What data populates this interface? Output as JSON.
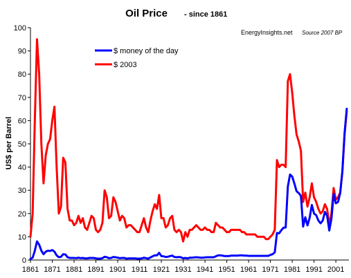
{
  "chart_data": {
    "type": "line",
    "title": "Oil Price",
    "subtitle": "- since 1861",
    "ylabel": "US$ per Barrel",
    "xlabel": "",
    "source_left": "EnergyInsights.net",
    "source_right": "Source 2007 BP",
    "ylim": [
      0,
      100
    ],
    "xlim": [
      1861,
      2007
    ],
    "yticks": [
      0,
      10,
      20,
      30,
      40,
      50,
      60,
      70,
      80,
      90,
      100
    ],
    "xticks": [
      1861,
      1871,
      1881,
      1891,
      1901,
      1911,
      1921,
      1931,
      1941,
      1951,
      1961,
      1971,
      1981,
      1991,
      2001
    ],
    "grid": false,
    "legend_position": "top-left",
    "series": [
      {
        "name": "$ money of the day",
        "color": "#0000ff",
        "points": [
          [
            1861,
            0.5
          ],
          [
            1862,
            1.0
          ],
          [
            1863,
            4.0
          ],
          [
            1864,
            8.0
          ],
          [
            1865,
            6.6
          ],
          [
            1866,
            4.0
          ],
          [
            1867,
            2.5
          ],
          [
            1868,
            3.6
          ],
          [
            1869,
            4.0
          ],
          [
            1870,
            3.9
          ],
          [
            1871,
            4.3
          ],
          [
            1872,
            3.6
          ],
          [
            1873,
            2.0
          ],
          [
            1874,
            1.2
          ],
          [
            1875,
            1.4
          ],
          [
            1876,
            2.5
          ],
          [
            1877,
            2.4
          ],
          [
            1878,
            1.2
          ],
          [
            1879,
            0.9
          ],
          [
            1880,
            0.9
          ],
          [
            1881,
            0.9
          ],
          [
            1882,
            0.8
          ],
          [
            1883,
            1.0
          ],
          [
            1884,
            0.8
          ],
          [
            1885,
            0.9
          ],
          [
            1886,
            0.7
          ],
          [
            1887,
            0.7
          ],
          [
            1888,
            0.9
          ],
          [
            1889,
            0.9
          ],
          [
            1890,
            0.9
          ],
          [
            1891,
            0.7
          ],
          [
            1892,
            0.6
          ],
          [
            1893,
            0.6
          ],
          [
            1894,
            0.8
          ],
          [
            1895,
            1.4
          ],
          [
            1896,
            1.2
          ],
          [
            1897,
            0.8
          ],
          [
            1898,
            0.9
          ],
          [
            1899,
            1.3
          ],
          [
            1900,
            1.2
          ],
          [
            1901,
            1.0
          ],
          [
            1902,
            0.8
          ],
          [
            1903,
            0.9
          ],
          [
            1904,
            0.9
          ],
          [
            1905,
            0.6
          ],
          [
            1906,
            0.7
          ],
          [
            1907,
            0.7
          ],
          [
            1908,
            0.7
          ],
          [
            1909,
            0.7
          ],
          [
            1910,
            0.6
          ],
          [
            1911,
            0.6
          ],
          [
            1912,
            0.7
          ],
          [
            1913,
            1.0
          ],
          [
            1914,
            0.8
          ],
          [
            1915,
            0.6
          ],
          [
            1916,
            1.1
          ],
          [
            1917,
            1.6
          ],
          [
            1918,
            2.0
          ],
          [
            1919,
            2.0
          ],
          [
            1920,
            3.1
          ],
          [
            1921,
            1.7
          ],
          [
            1922,
            1.6
          ],
          [
            1923,
            1.3
          ],
          [
            1924,
            1.4
          ],
          [
            1925,
            1.7
          ],
          [
            1926,
            1.9
          ],
          [
            1927,
            1.3
          ],
          [
            1928,
            1.2
          ],
          [
            1929,
            1.3
          ],
          [
            1930,
            1.2
          ],
          [
            1931,
            0.7
          ],
          [
            1932,
            0.9
          ],
          [
            1933,
            0.7
          ],
          [
            1934,
            1.0
          ],
          [
            1935,
            1.0
          ],
          [
            1936,
            1.1
          ],
          [
            1937,
            1.2
          ],
          [
            1938,
            1.1
          ],
          [
            1939,
            1.0
          ],
          [
            1940,
            1.0
          ],
          [
            1941,
            1.1
          ],
          [
            1942,
            1.2
          ],
          [
            1943,
            1.2
          ],
          [
            1944,
            1.2
          ],
          [
            1945,
            1.2
          ],
          [
            1946,
            1.6
          ],
          [
            1947,
            2.0
          ],
          [
            1948,
            2.0
          ],
          [
            1949,
            1.9
          ],
          [
            1950,
            1.7
          ],
          [
            1951,
            1.7
          ],
          [
            1952,
            1.7
          ],
          [
            1953,
            1.9
          ],
          [
            1954,
            1.9
          ],
          [
            1955,
            1.9
          ],
          [
            1956,
            1.9
          ],
          [
            1957,
            2.0
          ],
          [
            1958,
            2.0
          ],
          [
            1959,
            1.9
          ],
          [
            1960,
            1.9
          ],
          [
            1961,
            1.8
          ],
          [
            1962,
            1.8
          ],
          [
            1963,
            1.8
          ],
          [
            1964,
            1.8
          ],
          [
            1965,
            1.8
          ],
          [
            1966,
            1.8
          ],
          [
            1967,
            1.8
          ],
          [
            1968,
            1.8
          ],
          [
            1969,
            1.8
          ],
          [
            1970,
            1.8
          ],
          [
            1971,
            2.2
          ],
          [
            1972,
            2.5
          ],
          [
            1973,
            3.3
          ],
          [
            1974,
            11.6
          ],
          [
            1975,
            11.5
          ],
          [
            1976,
            12.8
          ],
          [
            1977,
            13.9
          ],
          [
            1978,
            14.0
          ],
          [
            1979,
            31.6
          ],
          [
            1980,
            36.8
          ],
          [
            1981,
            35.9
          ],
          [
            1982,
            32.9
          ],
          [
            1983,
            29.6
          ],
          [
            1984,
            28.8
          ],
          [
            1985,
            27.6
          ],
          [
            1986,
            14.4
          ],
          [
            1987,
            18.4
          ],
          [
            1988,
            14.9
          ],
          [
            1989,
            18.2
          ],
          [
            1990,
            23.7
          ],
          [
            1991,
            20.0
          ],
          [
            1992,
            19.3
          ],
          [
            1993,
            17.0
          ],
          [
            1994,
            15.8
          ],
          [
            1995,
            17.0
          ],
          [
            1996,
            20.7
          ],
          [
            1997,
            19.1
          ],
          [
            1998,
            12.7
          ],
          [
            1999,
            17.9
          ],
          [
            2000,
            28.5
          ],
          [
            2001,
            24.4
          ],
          [
            2002,
            25.0
          ],
          [
            2003,
            28.8
          ],
          [
            2004,
            38.3
          ],
          [
            2005,
            54.5
          ],
          [
            2006,
            65.1
          ]
        ]
      },
      {
        "name": "$ 2003",
        "color": "#ff0000",
        "points": [
          [
            1861,
            10.0
          ],
          [
            1862,
            20.0
          ],
          [
            1863,
            60.0
          ],
          [
            1864,
            95.0
          ],
          [
            1865,
            80.0
          ],
          [
            1866,
            50.0
          ],
          [
            1867,
            33.0
          ],
          [
            1868,
            45.0
          ],
          [
            1869,
            50.0
          ],
          [
            1870,
            52.0
          ],
          [
            1871,
            60.0
          ],
          [
            1872,
            66.0
          ],
          [
            1873,
            40.0
          ],
          [
            1874,
            20.0
          ],
          [
            1875,
            23.0
          ],
          [
            1876,
            44.0
          ],
          [
            1877,
            42.0
          ],
          [
            1878,
            22.0
          ],
          [
            1879,
            17.0
          ],
          [
            1880,
            17.0
          ],
          [
            1881,
            15.0
          ],
          [
            1882,
            16.0
          ],
          [
            1883,
            19.0
          ],
          [
            1884,
            16.0
          ],
          [
            1885,
            18.0
          ],
          [
            1886,
            14.0
          ],
          [
            1887,
            13.0
          ],
          [
            1888,
            16.0
          ],
          [
            1889,
            19.0
          ],
          [
            1890,
            18.0
          ],
          [
            1891,
            13.0
          ],
          [
            1892,
            12.0
          ],
          [
            1893,
            13.0
          ],
          [
            1894,
            16.0
          ],
          [
            1895,
            30.0
          ],
          [
            1896,
            27.0
          ],
          [
            1897,
            18.0
          ],
          [
            1898,
            19.0
          ],
          [
            1899,
            27.0
          ],
          [
            1900,
            25.0
          ],
          [
            1901,
            21.0
          ],
          [
            1902,
            17.0
          ],
          [
            1903,
            19.0
          ],
          [
            1904,
            18.0
          ],
          [
            1905,
            14.0
          ],
          [
            1906,
            15.0
          ],
          [
            1907,
            15.0
          ],
          [
            1908,
            14.0
          ],
          [
            1909,
            13.0
          ],
          [
            1910,
            12.0
          ],
          [
            1911,
            12.0
          ],
          [
            1912,
            15.0
          ],
          [
            1913,
            18.0
          ],
          [
            1914,
            14.0
          ],
          [
            1915,
            12.0
          ],
          [
            1916,
            17.0
          ],
          [
            1917,
            21.0
          ],
          [
            1918,
            24.0
          ],
          [
            1919,
            22.0
          ],
          [
            1920,
            28.0
          ],
          [
            1921,
            18.0
          ],
          [
            1922,
            18.0
          ],
          [
            1923,
            14.0
          ],
          [
            1924,
            15.0
          ],
          [
            1925,
            18.0
          ],
          [
            1926,
            19.0
          ],
          [
            1927,
            13.0
          ],
          [
            1928,
            12.0
          ],
          [
            1929,
            13.0
          ],
          [
            1930,
            12.0
          ],
          [
            1931,
            8.0
          ],
          [
            1932,
            12.0
          ],
          [
            1933,
            10.0
          ],
          [
            1934,
            13.0
          ],
          [
            1935,
            13.0
          ],
          [
            1936,
            14.0
          ],
          [
            1937,
            15.0
          ],
          [
            1938,
            14.0
          ],
          [
            1939,
            13.0
          ],
          [
            1940,
            13.0
          ],
          [
            1941,
            14.0
          ],
          [
            1942,
            13.0
          ],
          [
            1943,
            13.0
          ],
          [
            1944,
            12.0
          ],
          [
            1945,
            12.0
          ],
          [
            1946,
            16.0
          ],
          [
            1947,
            15.0
          ],
          [
            1948,
            14.0
          ],
          [
            1949,
            14.0
          ],
          [
            1950,
            13.0
          ],
          [
            1951,
            12.0
          ],
          [
            1952,
            12.0
          ],
          [
            1953,
            13.0
          ],
          [
            1954,
            13.0
          ],
          [
            1955,
            13.0
          ],
          [
            1956,
            13.0
          ],
          [
            1957,
            13.0
          ],
          [
            1958,
            12.0
          ],
          [
            1959,
            12.0
          ],
          [
            1960,
            11.0
          ],
          [
            1961,
            11.0
          ],
          [
            1962,
            11.0
          ],
          [
            1963,
            11.0
          ],
          [
            1964,
            11.0
          ],
          [
            1965,
            10.0
          ],
          [
            1966,
            10.0
          ],
          [
            1967,
            10.0
          ],
          [
            1968,
            10.0
          ],
          [
            1969,
            9.0
          ],
          [
            1970,
            9.0
          ],
          [
            1971,
            10.0
          ],
          [
            1972,
            11.0
          ],
          [
            1973,
            13.0
          ],
          [
            1974,
            43.0
          ],
          [
            1975,
            40.0
          ],
          [
            1976,
            41.0
          ],
          [
            1977,
            41.0
          ],
          [
            1978,
            40.0
          ],
          [
            1979,
            77.0
          ],
          [
            1980,
            80.0
          ],
          [
            1981,
            72.0
          ],
          [
            1982,
            62.0
          ],
          [
            1983,
            54.0
          ],
          [
            1984,
            51.0
          ],
          [
            1985,
            47.0
          ],
          [
            1986,
            25.0
          ],
          [
            1987,
            29.0
          ],
          [
            1988,
            23.0
          ],
          [
            1989,
            27.0
          ],
          [
            1990,
            33.0
          ],
          [
            1991,
            27.0
          ],
          [
            1992,
            25.0
          ],
          [
            1993,
            22.0
          ],
          [
            1994,
            20.0
          ],
          [
            1995,
            21.0
          ],
          [
            1996,
            24.0
          ],
          [
            1997,
            22.0
          ],
          [
            1998,
            15.0
          ],
          [
            1999,
            20.0
          ],
          [
            2000,
            31.0
          ],
          [
            2001,
            26.0
          ],
          [
            2002,
            27.0
          ],
          [
            2003,
            29.0
          ],
          [
            2004,
            38.0
          ],
          [
            2005,
            54.0
          ],
          [
            2006,
            64.0
          ]
        ]
      }
    ]
  }
}
